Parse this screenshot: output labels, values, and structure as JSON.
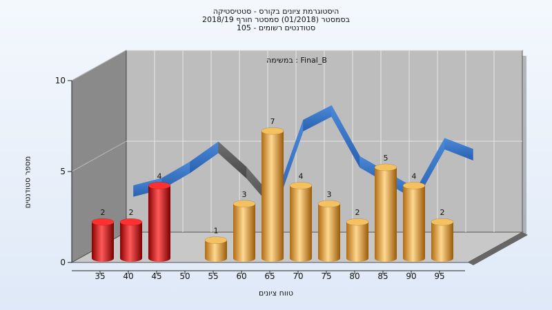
{
  "chart_data": {
    "type": "bar",
    "title_lines": [
      "היסטוגרמת ציונים בקורס - סטטיסטיקה",
      "בסמסטר  (01/2018)  סמסטר חורף 2018/19",
      "סטודנטים רשומים - 105"
    ],
    "caption": "במשימה : Final_B",
    "xlabel": "טווח ציונים",
    "ylabel": "מספר סטודנטים",
    "categories": [
      "35",
      "40",
      "45",
      "50",
      "55",
      "60",
      "65",
      "70",
      "75",
      "80",
      "85",
      "90",
      "95"
    ],
    "values": [
      2,
      2,
      4,
      0,
      1,
      3,
      7,
      4,
      3,
      2,
      5,
      4,
      2
    ],
    "bar_colors": [
      "red",
      "red",
      "red",
      "gold",
      "gold",
      "gold",
      "gold",
      "gold",
      "gold",
      "gold",
      "gold",
      "gold",
      "gold"
    ],
    "trend_values": [
      3.2,
      3.6,
      4.5,
      5.6,
      4.2,
      2.4,
      6.8,
      7.6,
      4.8,
      3.9,
      3.0,
      5.8,
      5.2
    ],
    "trend_colors": [
      "blue",
      "blue",
      "blue",
      "gray",
      "gray",
      "blue",
      "blue",
      "blue",
      "blue",
      "blue",
      "blue",
      "blue",
      "blue"
    ],
    "yticks": [
      "0",
      "5",
      "10"
    ],
    "ylim": [
      0,
      10
    ],
    "grid": true,
    "colors": {
      "red": "#e01818",
      "gold": "#e8a840",
      "blue": "#3a78c8",
      "gray": "#606060",
      "wall": "#bdbdbd",
      "side_wall": "#8a8a8a"
    }
  }
}
